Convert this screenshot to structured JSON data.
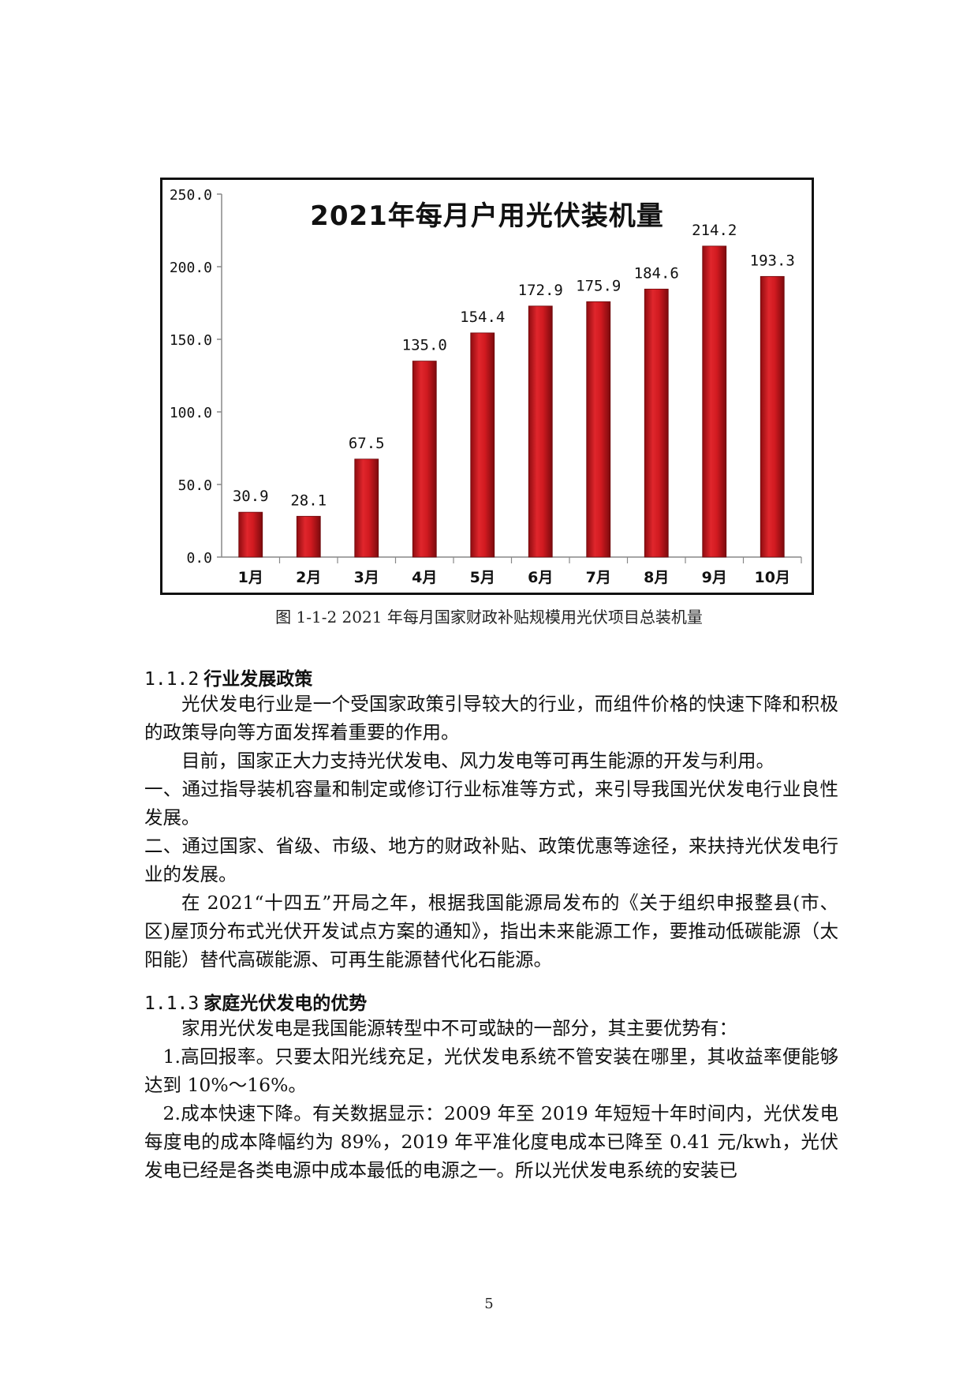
{
  "chart_data": {
    "type": "bar",
    "title": "2021年每月户用光伏装机量",
    "categories": [
      "1月",
      "2月",
      "3月",
      "4月",
      "5月",
      "6月",
      "7月",
      "8月",
      "9月",
      "10月"
    ],
    "values": [
      30.9,
      28.1,
      67.5,
      135.0,
      154.4,
      172.9,
      175.9,
      184.6,
      214.2,
      193.3
    ],
    "value_labels": [
      "30.9",
      "28.1",
      "67.5",
      "135.0",
      "154.4",
      "172.9",
      "175.9",
      "184.6",
      "214.2",
      "193.3"
    ],
    "yticks": [
      "0.0",
      "50.0",
      "100.0",
      "150.0",
      "200.0",
      "250.0"
    ],
    "ylim": [
      0,
      250
    ],
    "xlabel": "",
    "ylabel": "",
    "grid": false,
    "bar_color": "#c8161d"
  },
  "caption": "图 1-1-2 2021 年每月国家财政补贴规模用光伏项目总装机量",
  "section_1_1_2": {
    "number": "1.1.2",
    "title": "行业发展政策",
    "paragraphs": [
      "光伏发电行业是一个受国家政策引导较大的行业，而组件价格的快速下降和积极的政策导向等方面发挥着重要的作用。",
      "目前，国家正大力支持光伏发电、风力发电等可再生能源的开发与利用。",
      "一、通过指导装机容量和制定或修订行业标准等方式，来引导我国光伏发电行业良性发展。",
      "二、通过国家、省级、市级、地方的财政补贴、政策优惠等途径，来扶持光伏发电行业的发展。",
      "在 2021“十四五”开局之年，根据我国能源局发布的《关于组织申报整县(市、区)屋顶分布式光伏开发试点方案的通知》，指出未来能源工作，要推动低碳能源（太阳能）替代高碳能源、可再生能源替代化石能源。"
    ]
  },
  "section_1_1_3": {
    "number": "1.1.3",
    "title": "家庭光伏发电的优势",
    "paragraphs": [
      "家用光伏发电是我国能源转型中不可或缺的一部分，其主要优势有：",
      "1.高回报率。只要太阳光线充足，光伏发电系统不管安装在哪里，其收益率便能够达到 10%～16%。",
      "2.成本快速下降。有关数据显示：2009 年至 2019 年短短十年时间内，光伏发电每度电的成本降幅约为 89%，2019 年平准化度电成本已降至 0.41 元/kwh，光伏发电已经是各类电源中成本最低的电源之一。所以光伏发电系统的安装已"
    ]
  },
  "page_number": "5"
}
